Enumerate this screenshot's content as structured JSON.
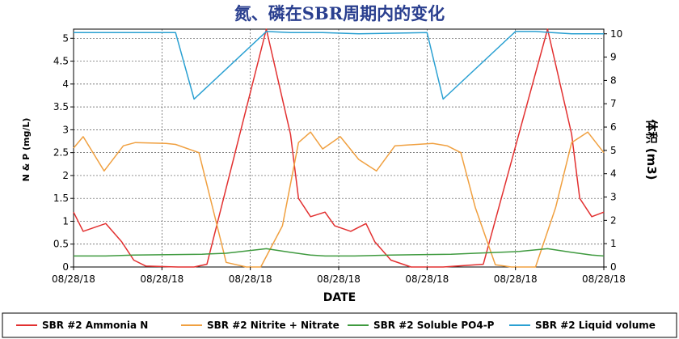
{
  "chart_data": {
    "type": "line",
    "title": "氮、磷在SBR周期内的变化",
    "xlabel": "DATE",
    "ylabel_left": "N & P (mg/L)",
    "ylabel_right": "体积 (m3)",
    "x_tick_labels": [
      "08/28/18",
      "08/28/18",
      "08/28/18",
      "08/28/18",
      "08/28/18",
      "08/28/18",
      "08/28/18"
    ],
    "x_range": [
      0,
      66
    ],
    "ylim_left": [
      0,
      5.2
    ],
    "yticks_left": [
      "0",
      "0.5",
      "1",
      "1.5",
      "2",
      "2.5",
      "3",
      "3.5",
      "4",
      "4.5",
      "5"
    ],
    "ylim_right": [
      0,
      10.2
    ],
    "yticks_right": [
      "0",
      "1",
      "2",
      "3",
      "4",
      "5",
      "6",
      "7",
      "8",
      "9",
      "10"
    ],
    "grid": true,
    "legend_position": "bottom",
    "series": [
      {
        "name": "SBR #2 Ammonia N",
        "color": "#e23030",
        "axis": "left",
        "x": [
          0,
          1.2,
          4,
          6,
          7.5,
          9,
          13,
          15,
          16.6,
          24,
          27,
          28,
          29.5,
          31.3,
          32.5,
          34.5,
          36.4,
          37.5,
          39.5,
          42,
          44.3,
          46,
          51,
          59,
          62,
          63,
          64.5,
          66
        ],
        "y": [
          1.2,
          0.78,
          0.95,
          0.55,
          0.15,
          0.02,
          0.0,
          0.0,
          0.06,
          5.2,
          2.9,
          1.5,
          1.1,
          1.2,
          0.9,
          0.78,
          0.95,
          0.55,
          0.15,
          0.0,
          0.0,
          0.0,
          0.06,
          5.2,
          2.9,
          1.5,
          1.1,
          1.2
        ]
      },
      {
        "name": "SBR #2 Nitrite + Nitrate",
        "color": "#f0a040",
        "axis": "left",
        "x": [
          0,
          1.2,
          3.8,
          6.2,
          7.7,
          11.5,
          12.7,
          15.6,
          17.3,
          19,
          21.5,
          23.3,
          26,
          28,
          29.5,
          31,
          33.2,
          35.5,
          37.7,
          40,
          44.7,
          46.5,
          48.2,
          50,
          52.5,
          54.5,
          57.5,
          60,
          62,
          64,
          66
        ],
        "y": [
          2.6,
          2.85,
          2.1,
          2.65,
          2.72,
          2.7,
          2.68,
          2.5,
          1.3,
          0.1,
          0.0,
          0.0,
          0.9,
          2.72,
          2.95,
          2.58,
          2.85,
          2.35,
          2.1,
          2.65,
          2.7,
          2.65,
          2.5,
          1.3,
          0.05,
          0.0,
          0.0,
          1.3,
          2.72,
          2.95,
          2.5
        ]
      },
      {
        "name": "SBR #2 Soluble PO4-P",
        "color": "#3f9a3f",
        "axis": "left",
        "x": [
          0,
          4,
          7.5,
          16,
          19,
          24,
          27,
          29.5,
          31.3,
          35,
          39.5,
          43,
          47,
          50,
          55.5,
          59,
          62,
          64.5,
          66
        ],
        "y": [
          0.24,
          0.24,
          0.26,
          0.28,
          0.3,
          0.4,
          0.32,
          0.26,
          0.24,
          0.24,
          0.26,
          0.27,
          0.28,
          0.3,
          0.34,
          0.4,
          0.32,
          0.26,
          0.24
        ]
      },
      {
        "name": "SBR #2 Liquid volume",
        "color": "#2aa0d2",
        "axis": "right",
        "x": [
          0,
          12.7,
          15,
          24,
          27,
          29,
          31,
          35.5,
          44,
          46,
          55,
          57.5,
          59.5,
          62,
          66
        ],
        "y": [
          10.05,
          10.05,
          7.2,
          10.1,
          10.05,
          10.05,
          10.05,
          10.0,
          10.05,
          7.2,
          10.1,
          10.1,
          10.05,
          10.0,
          10.0
        ]
      }
    ]
  }
}
